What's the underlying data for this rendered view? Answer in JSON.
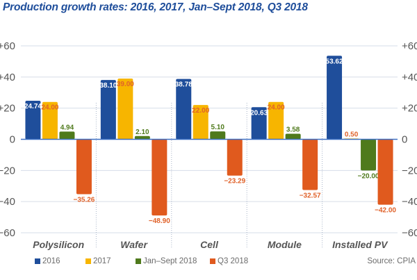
{
  "chart_data": {
    "type": "bar",
    "title": "Production growth rates: 2016, 2017, Jan–Sept 2018, Q3 2018",
    "xlabel": "",
    "ylabel": "",
    "ylim": [
      -60,
      60
    ],
    "yticks": [
      60,
      40,
      20,
      0,
      -20,
      -40,
      -60
    ],
    "ytick_labels": [
      "+60",
      "+40",
      "+20",
      "0",
      "−20",
      "−40",
      "−60"
    ],
    "grid": true,
    "legend_position": "bottom",
    "categories": [
      "Polysilicon",
      "Wafer",
      "Cell",
      "Module",
      "Installed PV"
    ],
    "series": [
      {
        "name": "2016",
        "color": "#1f4e9b",
        "label_color": "#ffffff",
        "values": [
          24.74,
          38.1,
          38.78,
          20.63,
          53.62
        ],
        "labels": [
          "24.74",
          "38.10",
          "38.78",
          "20.63",
          "53.62"
        ]
      },
      {
        "name": "2017",
        "color": "#f7b500",
        "label_color": "#e0622a",
        "values": [
          24.0,
          39.0,
          22.0,
          24.0,
          0.5
        ],
        "labels": [
          "24.00",
          "39.00",
          "22.00",
          "24.00",
          "0.50"
        ]
      },
      {
        "name": "Jan–Sept 2018",
        "color": "#4f7a1c",
        "label_color": "#ffffff",
        "values": [
          4.94,
          2.1,
          5.1,
          3.58,
          -20.0
        ],
        "labels": [
          "4.94",
          "2.10",
          "5.10",
          "3.58",
          "−20.00"
        ]
      },
      {
        "name": "Q3 2018",
        "color": "#e05a1e",
        "label_color": "#e0622a",
        "values": [
          -35.26,
          -48.9,
          -23.29,
          -32.57,
          -42.0
        ],
        "labels": [
          "−35.26",
          "−48.90",
          "−23.29",
          "−32.57",
          "−42.00"
        ]
      }
    ],
    "source": "Source: CPIA"
  }
}
